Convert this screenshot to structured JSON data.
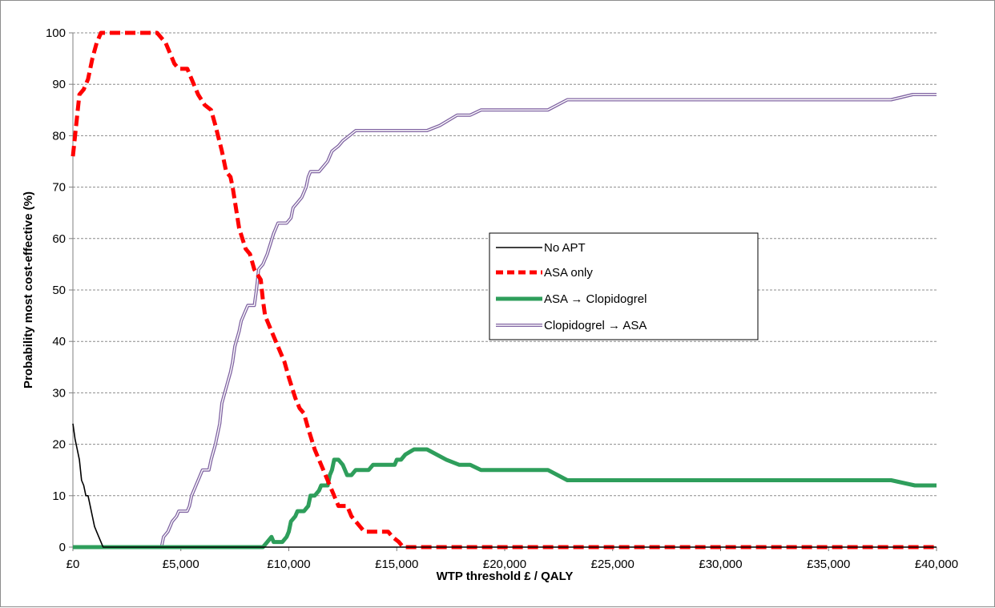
{
  "chart_data": {
    "type": "line",
    "title": "",
    "xlabel": "WTP threshold £ / QALY",
    "ylabel": "Probability most cost-effective (%)",
    "xlim": [
      0,
      40000
    ],
    "ylim": [
      0,
      100
    ],
    "x_ticks": [
      0,
      5000,
      10000,
      15000,
      20000,
      25000,
      30000,
      35000,
      40000
    ],
    "x_tick_labels": [
      "£0",
      "£5,000",
      "£10,000",
      "£15,000",
      "£20,000",
      "£25,000",
      "£30,000",
      "£35,000",
      "£40,000"
    ],
    "y_ticks": [
      0,
      10,
      20,
      30,
      40,
      50,
      60,
      70,
      80,
      90,
      100
    ],
    "y_tick_labels": [
      "0",
      "10",
      "20",
      "30",
      "40",
      "50",
      "60",
      "70",
      "80",
      "90",
      "100"
    ],
    "grid": "horizontal dashed",
    "legend_position": "center-right",
    "series": [
      {
        "name": "No APT",
        "color": "#000000",
        "style": "solid-thin",
        "points": [
          [
            0,
            24
          ],
          [
            100,
            21
          ],
          [
            200,
            19
          ],
          [
            300,
            17
          ],
          [
            400,
            13
          ],
          [
            500,
            12
          ],
          [
            600,
            10
          ],
          [
            700,
            10
          ],
          [
            800,
            8
          ],
          [
            900,
            6
          ],
          [
            1000,
            4
          ],
          [
            1100,
            3
          ],
          [
            1200,
            2
          ],
          [
            1300,
            1
          ],
          [
            1400,
            0
          ],
          [
            40000,
            0
          ]
        ]
      },
      {
        "name": "ASA only",
        "color": "#ff0000",
        "style": "dashed-thick",
        "points": [
          [
            0,
            76
          ],
          [
            100,
            80
          ],
          [
            200,
            84
          ],
          [
            300,
            88
          ],
          [
            500,
            89
          ],
          [
            700,
            91
          ],
          [
            900,
            95
          ],
          [
            1100,
            98
          ],
          [
            1300,
            100
          ],
          [
            1400,
            100
          ],
          [
            3900,
            100
          ],
          [
            4100,
            99
          ],
          [
            4300,
            98
          ],
          [
            4500,
            96
          ],
          [
            4700,
            94
          ],
          [
            4900,
            93
          ],
          [
            5300,
            93
          ],
          [
            5500,
            91
          ],
          [
            5800,
            88
          ],
          [
            6100,
            86
          ],
          [
            6400,
            85
          ],
          [
            6600,
            82
          ],
          [
            6900,
            77
          ],
          [
            7100,
            73
          ],
          [
            7300,
            72
          ],
          [
            7400,
            70
          ],
          [
            7700,
            62
          ],
          [
            8000,
            58
          ],
          [
            8200,
            57
          ],
          [
            8400,
            54
          ],
          [
            8700,
            52
          ],
          [
            8800,
            48
          ],
          [
            8900,
            45
          ],
          [
            9100,
            43
          ],
          [
            9200,
            42
          ],
          [
            9500,
            39
          ],
          [
            9800,
            36
          ],
          [
            10000,
            33
          ],
          [
            10300,
            29
          ],
          [
            10500,
            27
          ],
          [
            10700,
            26
          ],
          [
            10900,
            23
          ],
          [
            11200,
            19
          ],
          [
            11400,
            17
          ],
          [
            11700,
            14
          ],
          [
            11900,
            12
          ],
          [
            12100,
            10
          ],
          [
            12300,
            8
          ],
          [
            12700,
            8
          ],
          [
            12900,
            6
          ],
          [
            13100,
            5
          ],
          [
            13300,
            4
          ],
          [
            13500,
            3
          ],
          [
            14300,
            3
          ],
          [
            14600,
            3
          ],
          [
            14800,
            2
          ],
          [
            15100,
            1
          ],
          [
            15300,
            0
          ],
          [
            40000,
            0
          ]
        ]
      },
      {
        "name": "ASA → Clopidogrel",
        "color": "#2e9e5b",
        "style": "solid-thick",
        "points": [
          [
            0,
            0
          ],
          [
            8800,
            0
          ],
          [
            9000,
            1
          ],
          [
            9200,
            2
          ],
          [
            9300,
            1
          ],
          [
            9700,
            1
          ],
          [
            9900,
            2
          ],
          [
            10000,
            3
          ],
          [
            10100,
            5
          ],
          [
            10300,
            6
          ],
          [
            10400,
            7
          ],
          [
            10700,
            7
          ],
          [
            10900,
            8
          ],
          [
            11000,
            10
          ],
          [
            11200,
            10
          ],
          [
            11400,
            11
          ],
          [
            11500,
            12
          ],
          [
            11800,
            12
          ],
          [
            11900,
            14
          ],
          [
            12000,
            15
          ],
          [
            12100,
            17
          ],
          [
            12300,
            17
          ],
          [
            12500,
            16
          ],
          [
            12700,
            14
          ],
          [
            12900,
            14
          ],
          [
            13100,
            15
          ],
          [
            13700,
            15
          ],
          [
            13900,
            16
          ],
          [
            14900,
            16
          ],
          [
            15000,
            17
          ],
          [
            15200,
            17
          ],
          [
            15400,
            18
          ],
          [
            15800,
            19
          ],
          [
            16400,
            19
          ],
          [
            17300,
            17
          ],
          [
            17900,
            16
          ],
          [
            18400,
            16
          ],
          [
            18900,
            15
          ],
          [
            22000,
            15
          ],
          [
            22900,
            13
          ],
          [
            37900,
            13
          ],
          [
            39000,
            12
          ],
          [
            40000,
            12
          ]
        ]
      },
      {
        "name": "Clopidogrel → ASA",
        "color": "#8064a2",
        "style": "double-line",
        "points": [
          [
            0,
            0
          ],
          [
            4100,
            0
          ],
          [
            4200,
            2
          ],
          [
            4400,
            3
          ],
          [
            4500,
            4
          ],
          [
            4600,
            5
          ],
          [
            4800,
            6
          ],
          [
            4900,
            7
          ],
          [
            5300,
            7
          ],
          [
            5400,
            8
          ],
          [
            5500,
            10
          ],
          [
            5700,
            12
          ],
          [
            5900,
            14
          ],
          [
            6000,
            15
          ],
          [
            6300,
            15
          ],
          [
            6400,
            17
          ],
          [
            6600,
            20
          ],
          [
            6800,
            24
          ],
          [
            6900,
            28
          ],
          [
            7100,
            31
          ],
          [
            7300,
            34
          ],
          [
            7400,
            36
          ],
          [
            7500,
            39
          ],
          [
            7700,
            42
          ],
          [
            7800,
            44
          ],
          [
            8000,
            46
          ],
          [
            8100,
            47
          ],
          [
            8400,
            47
          ],
          [
            8500,
            50
          ],
          [
            8600,
            54
          ],
          [
            8800,
            55
          ],
          [
            9000,
            57
          ],
          [
            9300,
            61
          ],
          [
            9500,
            63
          ],
          [
            9900,
            63
          ],
          [
            10100,
            64
          ],
          [
            10200,
            66
          ],
          [
            10400,
            67
          ],
          [
            10600,
            68
          ],
          [
            10800,
            70
          ],
          [
            10900,
            72
          ],
          [
            11000,
            73
          ],
          [
            11400,
            73
          ],
          [
            11600,
            74
          ],
          [
            11800,
            75
          ],
          [
            12000,
            77
          ],
          [
            12300,
            78
          ],
          [
            12500,
            79
          ],
          [
            12800,
            80
          ],
          [
            13100,
            81
          ],
          [
            16400,
            81
          ],
          [
            17000,
            82
          ],
          [
            17800,
            84
          ],
          [
            18400,
            84
          ],
          [
            18900,
            85
          ],
          [
            22000,
            85
          ],
          [
            22900,
            87
          ],
          [
            37900,
            87
          ],
          [
            38900,
            88
          ],
          [
            40000,
            88
          ]
        ]
      }
    ]
  }
}
